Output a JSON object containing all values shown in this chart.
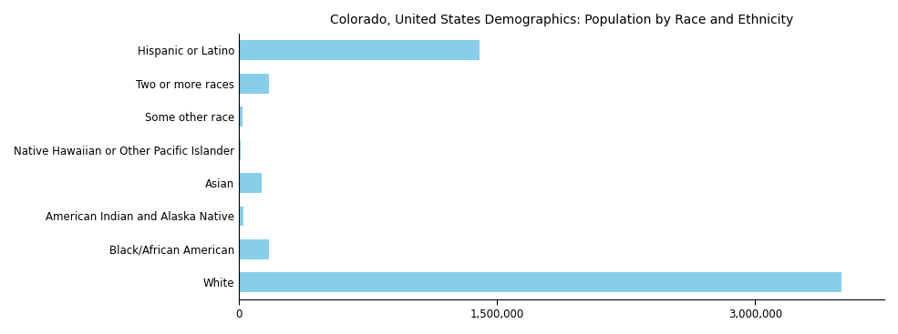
{
  "categories": [
    "White",
    "Black/African American",
    "American Indian and Alaska Native",
    "Asian",
    "Native Hawaiian or Other Pacific Islander",
    "Some other race",
    "Two or more races",
    "Hispanic or Latino"
  ],
  "values": [
    3500000,
    175000,
    25000,
    130000,
    10000,
    20000,
    175000,
    1400000
  ],
  "bar_color": "#87CEEB",
  "title": "Colorado, United States Demographics: Population by Race and Ethnicity",
  "xlim": [
    0,
    3750000
  ],
  "xticks": [
    0,
    1500000,
    3000000
  ],
  "xticklabels": [
    "0",
    "1,500,000",
    "3,000,000"
  ],
  "title_fontsize": 10,
  "tick_fontsize": 8.5,
  "background_color": "#ffffff"
}
